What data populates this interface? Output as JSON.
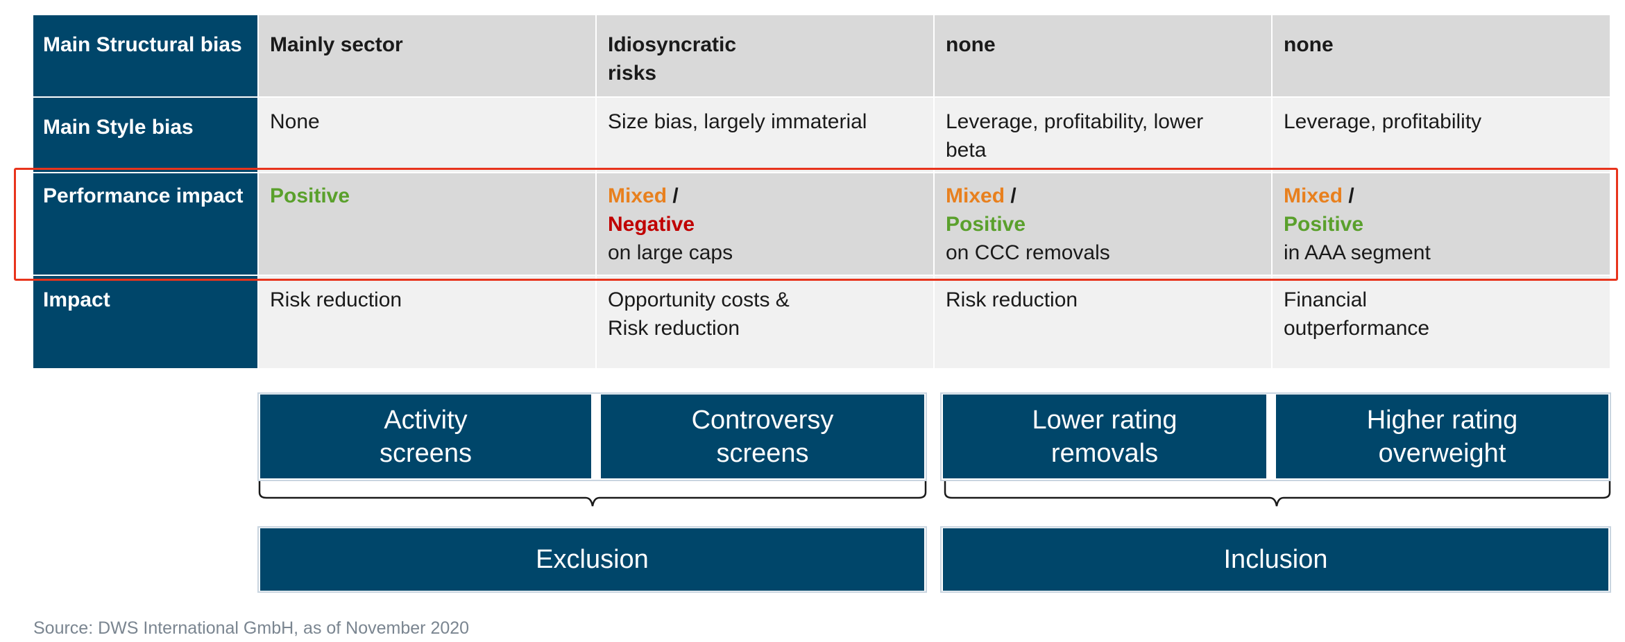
{
  "table": {
    "rows": [
      {
        "header": "Main Structural bias",
        "cells": [
          "Mainly sector",
          "Idiosyncratic\n risks",
          "none",
          "none"
        ]
      },
      {
        "header": "Main Style bias",
        "cells": [
          "None",
          "Size bias, largely immaterial",
          "Leverage, profitability, lower beta",
          "Leverage, profitability"
        ]
      },
      {
        "header": "Performance impact",
        "cells": [
          {
            "primary": "Positive"
          },
          {
            "primary": "Mixed",
            "slash": "/",
            "secondary": "Negative",
            "detail": "on large caps"
          },
          {
            "primary": "Mixed",
            "slash": "/",
            "secondary": "Positive",
            "detail": "on CCC removals"
          },
          {
            "primary": "Mixed",
            "slash": "/",
            "secondary": "Positive",
            "detail": "in AAA segment"
          }
        ]
      },
      {
        "header": "Impact",
        "cells": [
          "Risk reduction",
          "Opportunity costs &\nRisk reduction",
          "Risk reduction",
          "Financial\noutperformance"
        ]
      }
    ]
  },
  "approaches": [
    "Activity\nscreens",
    "Controversy\nscreens",
    "Lower rating\nremovals",
    "Higher rating\noverweight"
  ],
  "groups": [
    "Exclusion",
    "Inclusion"
  ],
  "source": "Source: DWS International GmbH, as of November 2020",
  "colors": {
    "navy": "#00466a",
    "positive": "#5aa02c",
    "mixed": "#e8801e",
    "negative": "#c00000",
    "highlight": "#e8341c"
  }
}
